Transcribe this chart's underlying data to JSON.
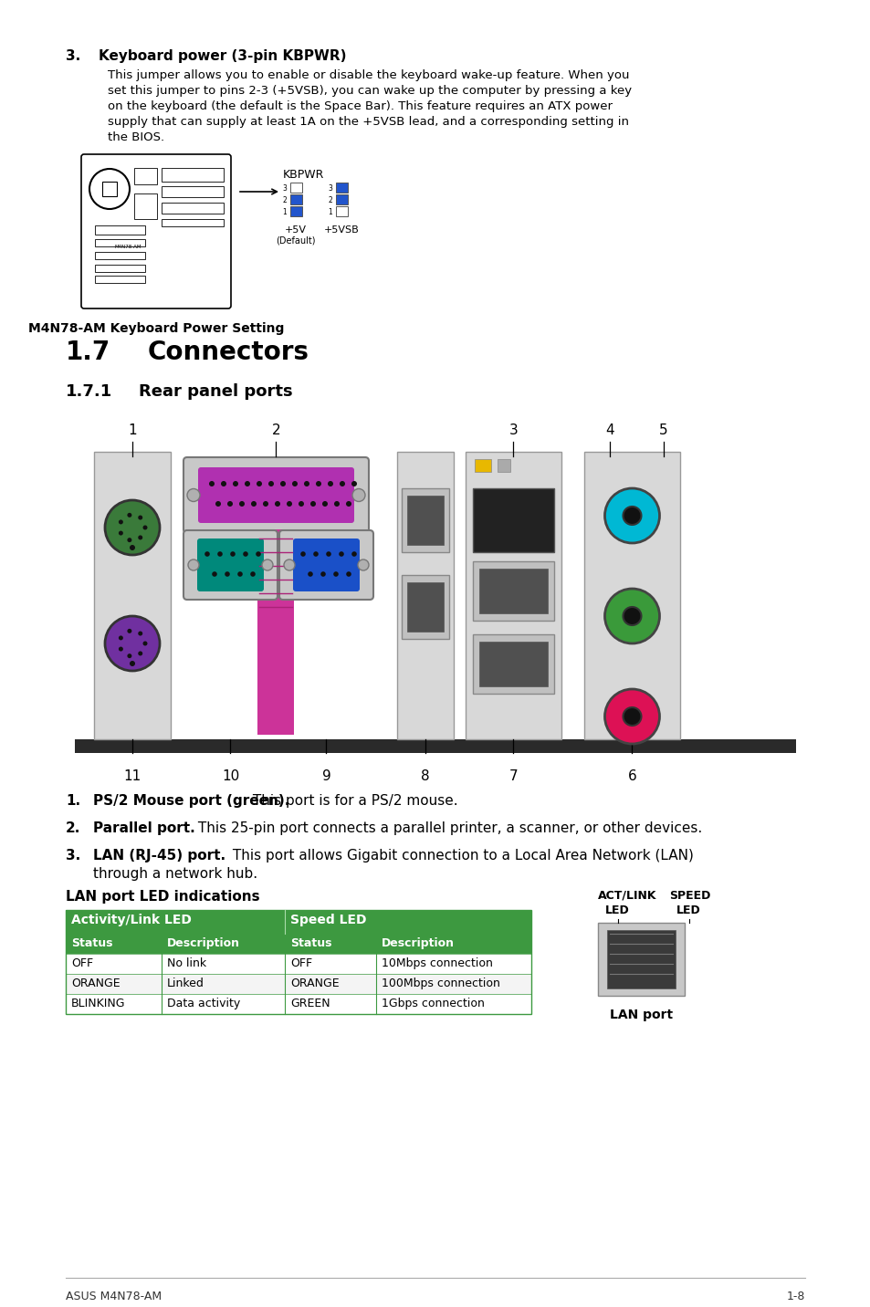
{
  "bg_color": "#ffffff",
  "section3_heading": "Keyboard power (3-pin KBPWR)",
  "section3_body_lines": [
    "This jumper allows you to enable or disable the keyboard wake-up feature. When you",
    "set this jumper to pins 2-3 (+5VSB), you can wake up the computer by pressing a key",
    "on the keyboard (the default is the Space Bar). This feature requires an ATX power",
    "supply that can supply at least 1A on the +5VSB lead, and a corresponding setting in",
    "the BIOS."
  ],
  "motherboard_caption": "M4N78-AM Keyboard Power Setting",
  "section17_heading": "1.7",
  "section17_title": "Connectors",
  "section171_heading": "1.7.1",
  "section171_title": "Rear panel ports",
  "item1_bold": "PS/2 Mouse port (green).",
  "item1_rest": " This port is for a PS/2 mouse.",
  "item2_bold": "Parallel port.",
  "item2_rest": " This 25-pin port connects a parallel printer, a scanner, or other devices.",
  "item3_bold": "LAN (RJ-45) port.",
  "item3_rest1": " This port allows Gigabit connection to a Local Area Network (LAN)",
  "item3_rest2": "through a network hub.",
  "lan_subtitle": "LAN port LED indications",
  "table_header1": "Activity/Link LED",
  "table_header2": "Speed LED",
  "table_col_headers": [
    "Status",
    "Description",
    "Status",
    "Description"
  ],
  "table_rows": [
    [
      "OFF",
      "No link",
      "OFF",
      "10Mbps connection"
    ],
    [
      "ORANGE",
      "Linked",
      "ORANGE",
      "100Mbps connection"
    ],
    [
      "BLINKING",
      "Data activity",
      "GREEN",
      "1Gbps connection"
    ]
  ],
  "table_green": "#3d9940",
  "footer_left": "ASUS M4N78-AM",
  "footer_right": "1-8"
}
